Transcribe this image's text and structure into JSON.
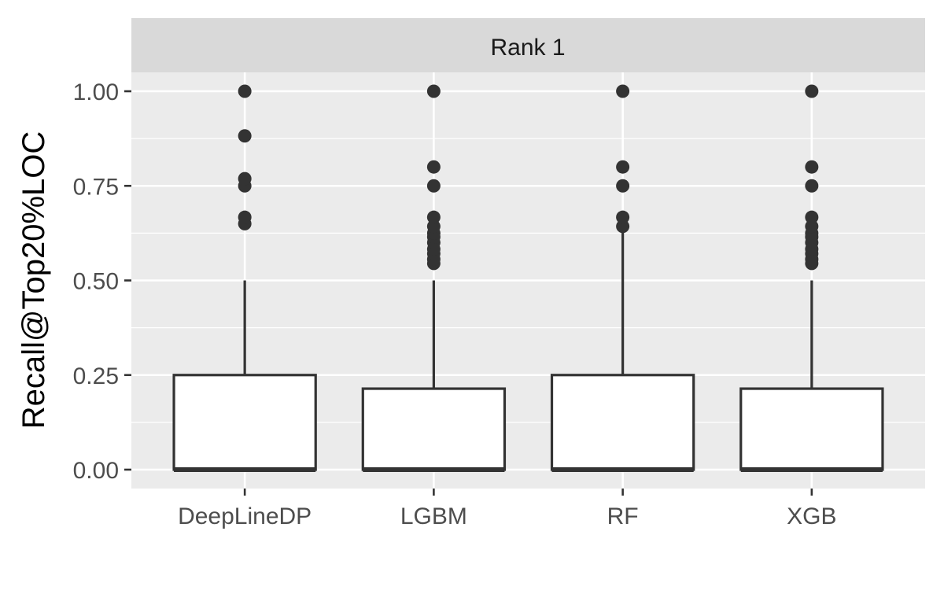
{
  "chart_data": {
    "type": "boxplot",
    "facet_label": "Rank 1",
    "xlabel": "",
    "ylabel": "Recall@Top20%LOC",
    "ylim": [
      -0.045,
      1.12
    ],
    "y_ticks": [
      0.0,
      0.25,
      0.5,
      0.75,
      1.0
    ],
    "y_tick_labels": [
      "0.00",
      "0.25",
      "0.50",
      "0.75",
      "1.00"
    ],
    "categories": [
      "DeepLineDP",
      "LGBM",
      "RF",
      "XGB"
    ],
    "boxes": [
      {
        "category": "DeepLineDP",
        "min": 0.0,
        "q1": 0.0,
        "median": 0.0,
        "q3": 0.25,
        "whisker_high": 0.5,
        "outliers": [
          0.65,
          0.667,
          0.75,
          0.769,
          0.882,
          1.0
        ]
      },
      {
        "category": "LGBM",
        "min": 0.0,
        "q1": 0.0,
        "median": 0.0,
        "q3": 0.214,
        "whisker_high": 0.5,
        "outliers": [
          0.545,
          0.556,
          0.571,
          0.583,
          0.6,
          0.615,
          0.625,
          0.643,
          0.667,
          0.75,
          0.8,
          1.0
        ]
      },
      {
        "category": "RF",
        "min": 0.0,
        "q1": 0.0,
        "median": 0.0,
        "q3": 0.25,
        "whisker_high": 0.636,
        "outliers": [
          0.643,
          0.667,
          0.75,
          0.8,
          1.0
        ]
      },
      {
        "category": "XGB",
        "min": 0.0,
        "q1": 0.0,
        "median": 0.0,
        "q3": 0.214,
        "whisker_high": 0.5,
        "outliers": [
          0.545,
          0.556,
          0.571,
          0.583,
          0.6,
          0.615,
          0.625,
          0.643,
          0.667,
          0.75,
          0.8,
          1.0
        ]
      }
    ],
    "grid": true,
    "colors": {
      "panel_background": "#ebebeb",
      "strip_background": "#d9d9d9",
      "gridline": "#ffffff",
      "box_fill": "#ffffff",
      "box_line": "#333333",
      "outlier": "#333333"
    }
  }
}
